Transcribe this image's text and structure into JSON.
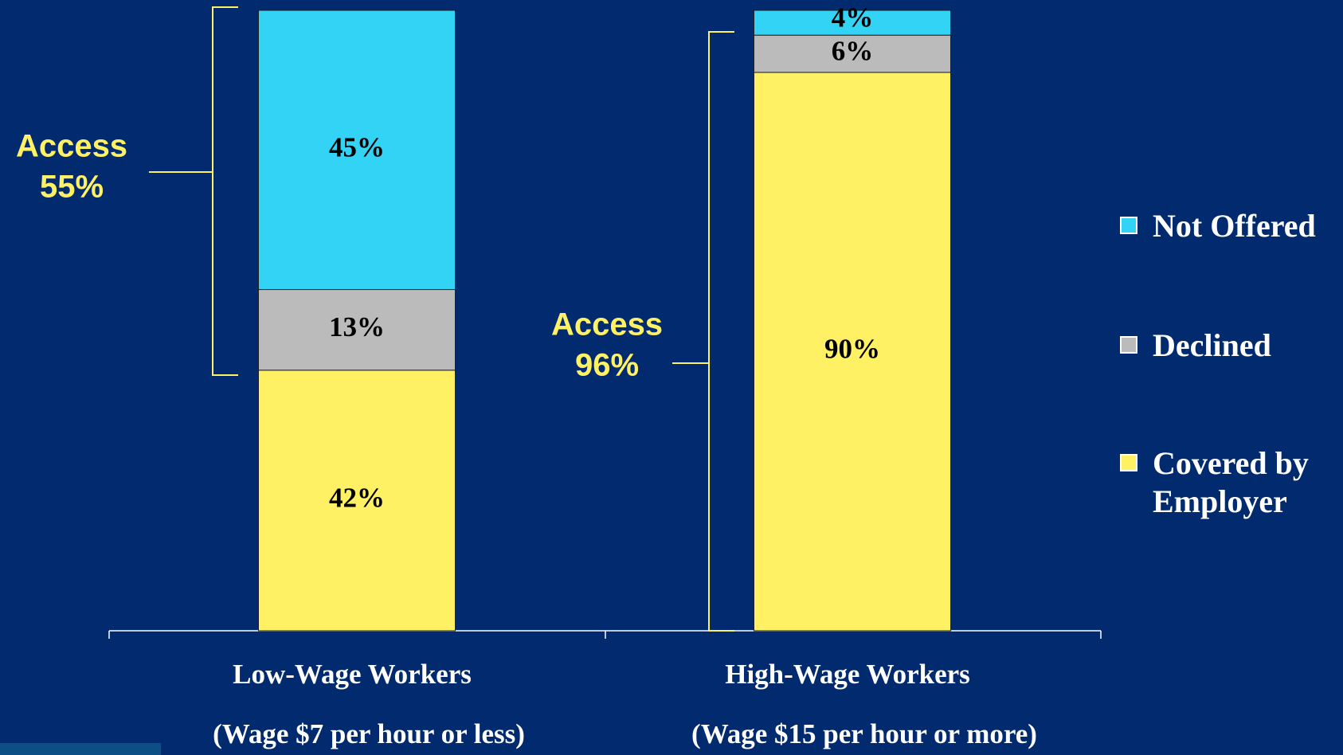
{
  "chart_data": {
    "type": "stacked-bar",
    "categories": [
      "Low-Wage Workers",
      "High-Wage Workers"
    ],
    "category_notes": [
      "(Wage $7 per hour or less)",
      "(Wage $15 per hour or more)"
    ],
    "series": [
      {
        "name": "Covered by Employer",
        "color": "#fff163",
        "values": [
          42,
          90
        ],
        "value_labels": [
          "42%",
          "90%"
        ]
      },
      {
        "name": "Declined",
        "color": "#bbbbbb",
        "values": [
          13,
          6
        ],
        "value_labels": [
          "13%",
          "6%"
        ]
      },
      {
        "name": "Not Offered",
        "color": "#33d3f5",
        "values": [
          45,
          4
        ],
        "value_labels": [
          "45%",
          "4%"
        ]
      }
    ],
    "ylim": [
      0,
      100
    ],
    "annotations": [
      {
        "text": "Access",
        "value": 55,
        "value_label": "55%"
      },
      {
        "text": "Access",
        "value": 96,
        "value_label": "96%"
      }
    ]
  }
}
